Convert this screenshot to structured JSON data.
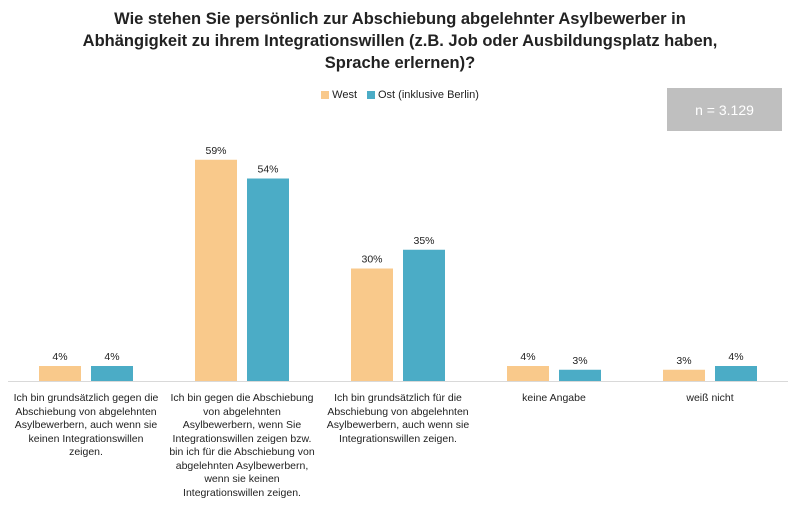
{
  "chart_data": {
    "type": "bar",
    "title": "Wie stehen Sie persönlich zur Abschiebung abgelehnter Asylbewerber in Abhängigkeit zu ihrem Integrationswillen (z.B. Job oder Ausbildungsplatz haben, Sprache erlernen)?",
    "categories": [
      "Ich bin grundsätzlich gegen die Abschiebung von abgelehnten Asylbewerbern, auch wenn sie keinen Integrationswillen zeigen.",
      "Ich bin gegen die Abschiebung von abgelehnten Asylbewerbern, wenn Sie Integrationswillen zeigen bzw. bin ich für die Abschiebung von abgelehnten Asylbewerbern, wenn sie keinen Integrationswillen zeigen.",
      "Ich bin grundsätzlich für die Abschiebung von abgelehnten Asylbewerbern, auch wenn sie Integrationswillen zeigen.",
      "keine Angabe",
      "weiß nicht"
    ],
    "series": [
      {
        "name": "West",
        "values": [
          4,
          59,
          30,
          4,
          3
        ],
        "labels": [
          "4%",
          "59%",
          "30%",
          "4%",
          "3%"
        ],
        "color": "#f9c98b"
      },
      {
        "name": "Ost (inklusive Berlin)",
        "values": [
          4,
          54,
          35,
          3,
          4
        ],
        "labels": [
          "4%",
          "54%",
          "35%",
          "3%",
          "4%"
        ],
        "color": "#4bacc6"
      }
    ],
    "ylim": [
      0,
      60
    ],
    "grid": false,
    "legend_position": "top-center",
    "annotation": "n = 3.129"
  }
}
